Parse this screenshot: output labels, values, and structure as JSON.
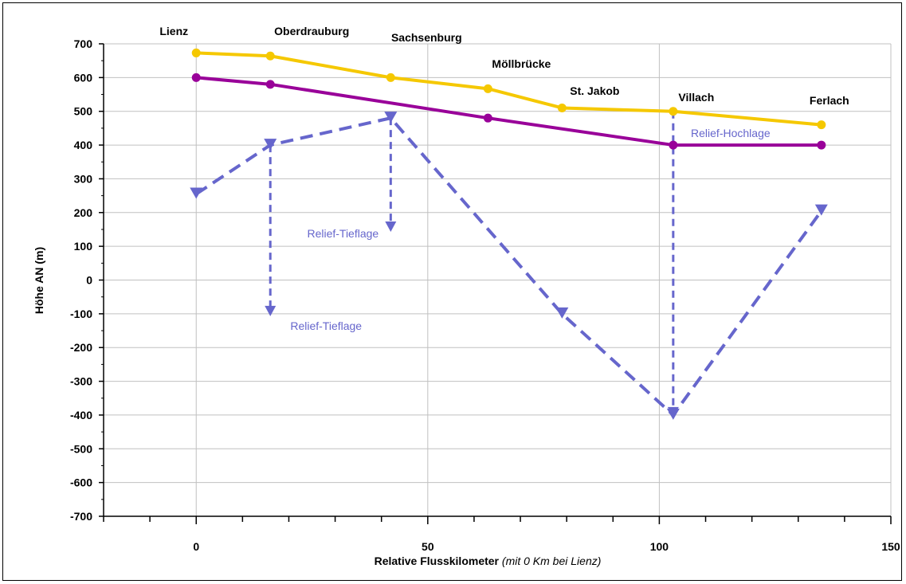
{
  "colors": {
    "upper": "#f5c800",
    "lower": "#990099",
    "relief": "#6666cc",
    "grid": "#c0c0c0"
  },
  "chart_data": {
    "type": "line",
    "title": "",
    "xlabel": "Relative Flusskilometer",
    "xlabel_note": "(mit 0 Km bei Lienz)",
    "ylabel": "Höhe AN (m)",
    "xlim": [
      -20,
      150
    ],
    "ylim": [
      -700,
      700
    ],
    "x_ticks": [
      0,
      50,
      100,
      150
    ],
    "y_ticks": [
      700,
      600,
      500,
      400,
      300,
      200,
      100,
      0,
      -100,
      -200,
      -300,
      -400,
      -500,
      -600,
      -700
    ],
    "grid": true,
    "series": [
      {
        "key": "upper",
        "marker": "circle",
        "style": "solid",
        "points": [
          [
            0,
            673
          ],
          [
            16,
            664
          ],
          [
            42,
            600
          ],
          [
            63,
            567
          ],
          [
            79,
            510
          ],
          [
            103,
            500
          ],
          [
            135,
            460
          ]
        ]
      },
      {
        "key": "lower",
        "marker": "circle",
        "style": "solid",
        "points": [
          [
            0,
            600
          ],
          [
            16,
            580
          ],
          [
            63,
            480
          ],
          [
            103,
            400
          ],
          [
            135,
            400
          ]
        ]
      },
      {
        "key": "relief",
        "marker": "triangle-down",
        "style": "dashed",
        "points": [
          [
            0,
            255
          ],
          [
            16,
            400
          ],
          [
            42,
            480
          ],
          [
            79,
            -100
          ],
          [
            103,
            -400
          ],
          [
            135,
            205
          ]
        ]
      }
    ],
    "relief_drops": [
      {
        "x": 16,
        "from": 400,
        "to": -100
      },
      {
        "x": 42,
        "from": 480,
        "to": 150
      },
      {
        "x": 103,
        "from": 500,
        "to": -400
      }
    ],
    "place_labels": [
      {
        "text": "Lienz",
        "x": 0
      },
      {
        "text": "Oberdrauburg",
        "x": 16
      },
      {
        "text": "Sachsenburg",
        "x": 42
      },
      {
        "text": "Möllbrücke",
        "x": 63
      },
      {
        "text": "St. Jakob",
        "x": 79
      },
      {
        "text": "Villach",
        "x": 103
      },
      {
        "text": "Ferlach",
        "x": 135
      }
    ],
    "annotations": [
      {
        "text": "Relief-Tieflage",
        "near_x": 16
      },
      {
        "text": "Relief-Tieflage",
        "near_x": 42
      },
      {
        "text": "Relief-Hochlage",
        "near_x": 103
      }
    ]
  }
}
